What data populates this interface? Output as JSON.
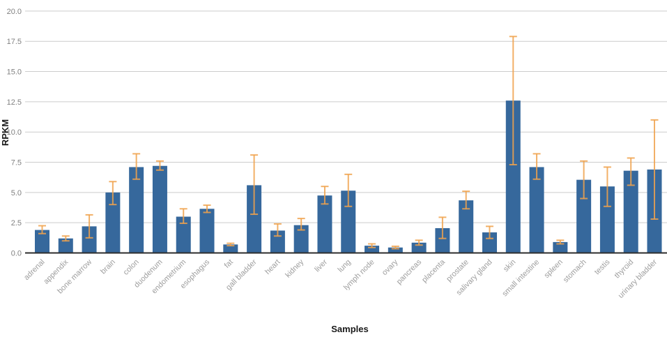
{
  "chart": {
    "title": "",
    "y_axis_title": "RPKM",
    "x_axis_title": "Samples"
  },
  "chart_data": {
    "type": "bar",
    "title": "",
    "xlabel": "Samples",
    "ylabel": "RPKM",
    "ylim": [
      0,
      20
    ],
    "grid": true,
    "legend": false,
    "yticks": [
      0,
      2.5,
      5,
      7.5,
      10,
      12.5,
      15,
      17.5,
      20
    ],
    "ytick_labels": [
      "0.0",
      "2.5",
      "5.0",
      "7.5",
      "10.0",
      "12.5",
      "15.0",
      "17.5",
      "20.0"
    ],
    "categories": [
      "adrenal",
      "appendix",
      "bone marrow",
      "brain",
      "colon",
      "duodenum",
      "endometrium",
      "esophagus",
      "fat",
      "gall bladder",
      "heart",
      "kidney",
      "liver",
      "lung",
      "lymph node",
      "ovary",
      "pancreas",
      "placenta",
      "prostate",
      "salivary gland",
      "skin",
      "small intestine",
      "spleen",
      "stomach",
      "testis",
      "thyroid",
      "urinary bladder"
    ],
    "series": [
      {
        "name": "RPKM",
        "values": [
          1.9,
          1.2,
          2.2,
          5.0,
          7.1,
          7.2,
          3.0,
          3.65,
          0.7,
          5.6,
          1.85,
          2.3,
          4.75,
          5.15,
          0.6,
          0.45,
          0.85,
          2.05,
          4.35,
          1.7,
          12.6,
          7.1,
          0.9,
          6.05,
          5.5,
          6.8,
          6.9
        ],
        "error_low": [
          1.6,
          1.0,
          1.25,
          4.0,
          6.1,
          6.85,
          2.45,
          3.35,
          0.6,
          3.2,
          1.4,
          1.9,
          4.05,
          3.85,
          0.45,
          0.35,
          0.65,
          1.2,
          3.65,
          1.2,
          7.3,
          6.1,
          0.75,
          4.5,
          3.85,
          5.6,
          2.8
        ],
        "error_high": [
          2.25,
          1.4,
          3.15,
          5.9,
          8.2,
          7.6,
          3.65,
          3.95,
          0.8,
          8.1,
          2.4,
          2.85,
          5.5,
          6.5,
          0.75,
          0.55,
          1.05,
          2.95,
          5.1,
          2.2,
          17.9,
          8.2,
          1.05,
          7.6,
          7.1,
          7.85,
          11.0
        ]
      }
    ],
    "colors": {
      "bar": "#36689c",
      "error_bar": "#f0a24c",
      "gridline": "#cccccc",
      "axis_line": "#2e2e2e",
      "ytick_text": "#808080",
      "xtick_text": "#9e9e9e",
      "axis_title_text": "#1a1a1a",
      "background": "#ffffff"
    }
  }
}
